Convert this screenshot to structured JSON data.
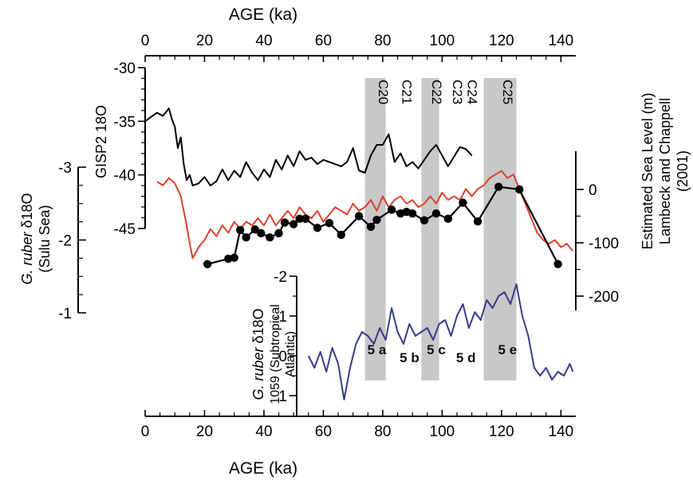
{
  "chart_data": {
    "type": "line",
    "x_axis": {
      "title": "AGE (ka)",
      "range": [
        0,
        145
      ],
      "ticks": [
        "0",
        "20",
        "40",
        "60",
        "80",
        "100",
        "120",
        "140"
      ]
    },
    "left_gisp2_axis": {
      "title": "GISP2 18O",
      "range": [
        -30,
        -45
      ],
      "ticks": [
        "-30",
        "-35",
        "-40",
        "-45"
      ]
    },
    "left_sulu_axis": {
      "title_italic": "G. ruber",
      "title_rest": " δ18O",
      "subtitle": "(Sulu Sea)",
      "range": [
        -3,
        -1
      ],
      "ticks": [
        "-3",
        "-2",
        "-1"
      ]
    },
    "right_sea_level_axis": {
      "title_lines": [
        "Estimated Sea Level (m)",
        "Lambeck and Chappell",
        "(2001)"
      ],
      "range": [
        0,
        -200
      ],
      "ticks": [
        "0",
        "-100",
        "-200"
      ]
    },
    "inset_atlantic_axis": {
      "title_italic": "G. ruber",
      "title_rest": " δ18O",
      "subtitle_lines": [
        "1059 (Subtropical",
        "Atlantic)"
      ],
      "range": [
        -2,
        1
      ],
      "ticks": [
        "-2",
        "-1",
        "0",
        "1"
      ]
    },
    "shaded_bands": [
      [
        74,
        81
      ],
      [
        93,
        99
      ],
      [
        114,
        125
      ]
    ],
    "stadial_labels": [
      {
        "text": "C20",
        "x": 77
      },
      {
        "text": "C21",
        "x": 85
      },
      {
        "text": "C22",
        "x": 95
      },
      {
        "text": "C23",
        "x": 102
      },
      {
        "text": "C24",
        "x": 107
      },
      {
        "text": "C25",
        "x": 119
      }
    ],
    "stage_labels": [
      {
        "text": "5 a",
        "x": 78,
        "y": 0
      },
      {
        "text": "5 b",
        "x": 89,
        "y": 0.2
      },
      {
        "text": "5 c",
        "x": 98,
        "y": 0
      },
      {
        "text": "5 d",
        "x": 108,
        "y": 0.2
      },
      {
        "text": "5 e",
        "x": 122,
        "y": 0
      }
    ],
    "series": [
      {
        "color": "#000000",
        "x": [
          0,
          2,
          4,
          6,
          8,
          9,
          10,
          11,
          12,
          13,
          14,
          15,
          16,
          18,
          20,
          22,
          24,
          26,
          28,
          30,
          32,
          34,
          36,
          38,
          40,
          42,
          44,
          46,
          48,
          50,
          52,
          54,
          56,
          58,
          60,
          62,
          64,
          66,
          68,
          70,
          72,
          74,
          76,
          78,
          80,
          82,
          84,
          86,
          88,
          90,
          92,
          94,
          96,
          98,
          100,
          102,
          104,
          106,
          108,
          110
        ],
        "y": [
          -35,
          -34.6,
          -34.2,
          -34.5,
          -33.8,
          -34.8,
          -35.5,
          -37.5,
          -36.5,
          -39,
          -40.5,
          -40,
          -41,
          -40.8,
          -40.2,
          -41,
          -40.6,
          -39.5,
          -40.5,
          -39.6,
          -40.2,
          -38.8,
          -39.8,
          -40.5,
          -39.5,
          -40.2,
          -38.6,
          -39.5,
          -38.2,
          -39.2,
          -37.8,
          -38.6,
          -38.4,
          -39,
          -38.6,
          -38.8,
          -39,
          -39.2,
          -38.8,
          -37.5,
          -39.6,
          -39.8,
          -38.2,
          -37.2,
          -37.2,
          -36.2,
          -38.8,
          -38,
          -39.2,
          -38.8,
          -39.4,
          -38.6,
          -37.8,
          -37.2,
          -38.2,
          -39.2,
          -38.3,
          -37.4,
          -37.6,
          -38.2
        ]
      },
      {
        "color": "#d8432b",
        "x": [
          4,
          6,
          8,
          10,
          12,
          14,
          15,
          16,
          18,
          20,
          22,
          24,
          26,
          28,
          30,
          32,
          34,
          36,
          38,
          40,
          42,
          44,
          46,
          48,
          50,
          52,
          54,
          56,
          58,
          60,
          62,
          64,
          66,
          68,
          70,
          72,
          74,
          76,
          78,
          80,
          82,
          84,
          86,
          88,
          90,
          92,
          94,
          96,
          98,
          100,
          102,
          104,
          106,
          108,
          110,
          112,
          114,
          116,
          118,
          120,
          122,
          124,
          126,
          128,
          130,
          132,
          134,
          136,
          138,
          140,
          142,
          144
        ],
        "y": [
          -2.8,
          -2.75,
          -2.85,
          -2.78,
          -2.6,
          -2.2,
          -1.95,
          -1.75,
          -1.9,
          -2.0,
          -2.15,
          -2.05,
          -2.2,
          -2.1,
          -2.25,
          -2.15,
          -2.25,
          -2.2,
          -2.3,
          -2.2,
          -2.35,
          -2.2,
          -2.3,
          -2.4,
          -2.3,
          -2.45,
          -2.35,
          -2.3,
          -2.4,
          -2.25,
          -2.35,
          -2.45,
          -2.4,
          -2.35,
          -2.5,
          -2.4,
          -2.45,
          -2.55,
          -2.4,
          -2.6,
          -2.45,
          -2.55,
          -2.6,
          -2.5,
          -2.55,
          -2.45,
          -2.5,
          -2.6,
          -2.5,
          -2.65,
          -2.55,
          -2.6,
          -2.55,
          -2.7,
          -2.6,
          -2.7,
          -2.75,
          -2.85,
          -2.9,
          -2.95,
          -2.85,
          -2.9,
          -2.7,
          -2.5,
          -2.3,
          -2.1,
          -2.0,
          -1.95,
          -2.0,
          -1.9,
          -1.95,
          -1.85
        ]
      },
      {
        "color": "#000000",
        "marker": "circle",
        "x": [
          21,
          28,
          30,
          32,
          34,
          37,
          39,
          42,
          45,
          47,
          50,
          52,
          54,
          58,
          62,
          66,
          72,
          76,
          78,
          83,
          86,
          88,
          90,
          94,
          98,
          102,
          107,
          112,
          119,
          126,
          139
        ],
        "y": [
          -140,
          -130,
          -128,
          -76,
          -90,
          -75,
          -82,
          -90,
          -82,
          -62,
          -65,
          -55,
          -55,
          -72,
          -63,
          -85,
          -50,
          -70,
          -57,
          -38,
          -45,
          -42,
          -45,
          -58,
          -45,
          -55,
          -25,
          -60,
          5,
          0,
          -140
        ]
      },
      {
        "color": "#3a3a8c",
        "x": [
          55,
          57,
          59,
          61,
          63,
          65,
          67,
          69,
          71,
          73,
          75,
          77,
          79,
          81,
          83,
          85,
          87,
          89,
          91,
          93,
          95,
          97,
          99,
          101,
          103,
          105,
          107,
          109,
          111,
          113,
          115,
          117,
          119,
          121,
          123,
          125,
          127,
          129,
          131,
          133,
          135,
          137,
          139,
          141,
          143,
          144
        ],
        "y": [
          0,
          0.3,
          -0.1,
          0.4,
          -0.2,
          0.2,
          1.1,
          0.3,
          -0.3,
          -0.6,
          -0.5,
          -0.3,
          -0.7,
          -0.4,
          -1.2,
          -0.6,
          -0.3,
          -0.8,
          -0.5,
          -0.6,
          -0.7,
          -0.4,
          -0.8,
          -0.9,
          -0.5,
          -1.0,
          -1.3,
          -0.7,
          -1.1,
          -0.9,
          -1.4,
          -1.2,
          -1.5,
          -1.6,
          -1.3,
          -1.8,
          -1.0,
          -0.5,
          0.3,
          0.5,
          0.3,
          0.6,
          0.4,
          0.5,
          0.2,
          0.4
        ]
      }
    ]
  }
}
